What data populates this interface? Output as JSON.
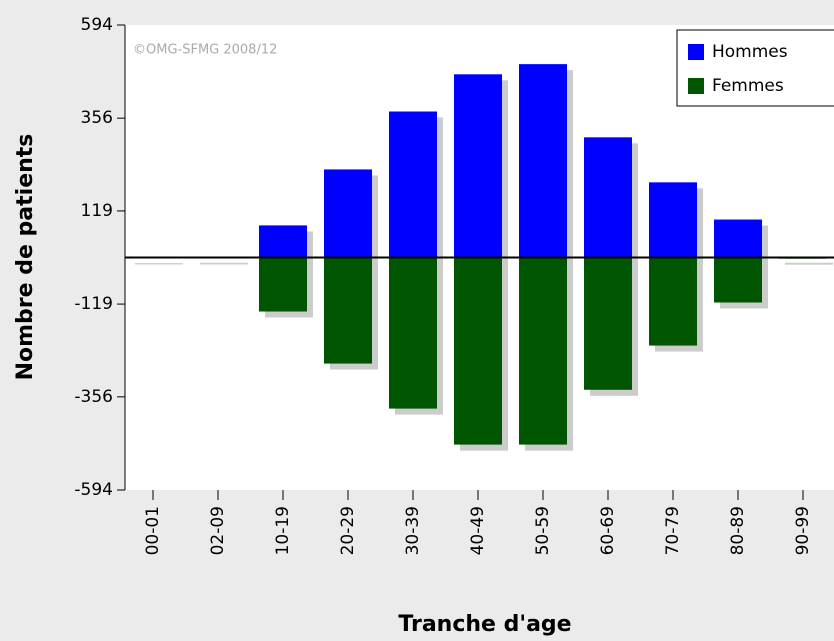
{
  "chart_data": {
    "type": "bar",
    "watermark": "©OMG-SFMG 2008/12",
    "x_label": "Tranche d'age",
    "y_label": "Nombre de patients",
    "categories": [
      "00-01",
      "02-09",
      "10-19",
      "20-29",
      "30-39",
      "40-49",
      "50-59",
      "60-69",
      "70-79",
      "80-89",
      "90-99"
    ],
    "series": [
      {
        "name": "Hommes",
        "color": "#0000ff",
        "values": [
          1,
          2,
          82,
          225,
          373,
          468,
          494,
          307,
          192,
          97,
          2
        ]
      },
      {
        "name": "Femmes",
        "color": "#005500",
        "values": [
          -2,
          -2,
          -138,
          -271,
          -386,
          -478,
          -478,
          -338,
          -225,
          -115,
          -3
        ]
      }
    ],
    "ylim": [
      -594,
      594
    ],
    "yticks": [
      -594,
      -356,
      -119,
      119,
      356,
      594
    ],
    "legend": "top-right"
  }
}
